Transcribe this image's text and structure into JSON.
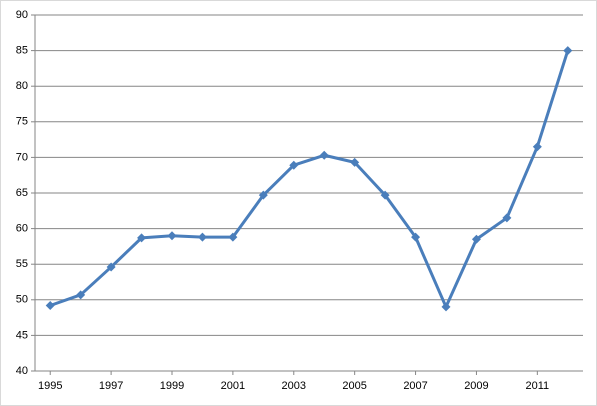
{
  "chart_data": {
    "type": "line",
    "x": [
      1995,
      1996,
      1997,
      1998,
      1999,
      2000,
      2001,
      2002,
      2003,
      2004,
      2005,
      2006,
      2007,
      2008,
      2009,
      2010,
      2011,
      2012
    ],
    "values": [
      49.2,
      50.7,
      54.6,
      58.7,
      59.0,
      58.8,
      58.8,
      64.7,
      68.9,
      70.3,
      69.3,
      64.7,
      58.8,
      49.0,
      58.5,
      61.5,
      71.5,
      85.0
    ],
    "color": "#4a7ebb",
    "xlim": [
      1994.5,
      2012.5
    ],
    "xticks": [
      1995,
      1997,
      1999,
      2001,
      2003,
      2005,
      2007,
      2009,
      2011
    ],
    "ylim": [
      40,
      90
    ],
    "yticks": [
      40,
      45,
      50,
      55,
      60,
      65,
      70,
      75,
      80,
      85,
      90
    ],
    "grid": true,
    "marker": "diamond"
  }
}
